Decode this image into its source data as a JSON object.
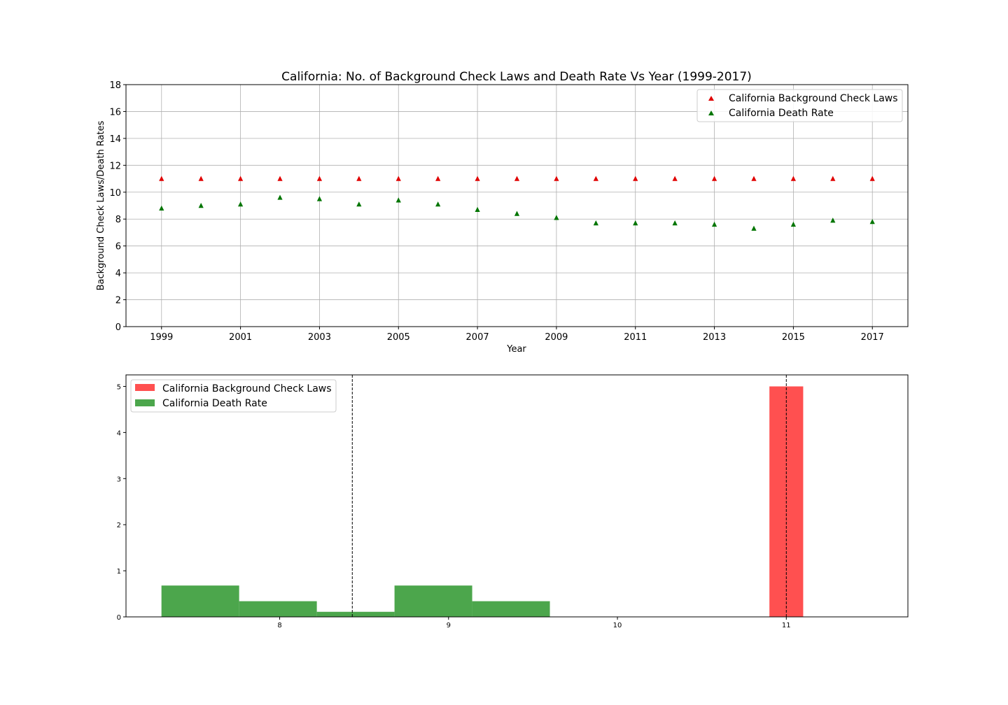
{
  "chart_data": [
    {
      "type": "scatter",
      "title": "California: No. of Background Check Laws and Death Rate Vs Year (1999-2017)",
      "xlabel": "Year",
      "ylabel": "Background Check Laws/Death Rates",
      "xlim": [
        1998.1,
        2017.9
      ],
      "ylim": [
        0,
        18
      ],
      "xticks": [
        "1999",
        "2001",
        "2003",
        "2005",
        "2007",
        "2009",
        "2011",
        "2013",
        "2015",
        "2017"
      ],
      "yticks": [
        "0",
        "2",
        "4",
        "6",
        "8",
        "10",
        "12",
        "14",
        "16",
        "18"
      ],
      "grid": true,
      "legend_position": "upper right",
      "x": [
        1999,
        2000,
        2001,
        2002,
        2003,
        2004,
        2005,
        2006,
        2007,
        2008,
        2009,
        2010,
        2011,
        2012,
        2013,
        2014,
        2015,
        2016,
        2017
      ],
      "series": [
        {
          "name": "California Background Check Laws",
          "color": "#e00000",
          "marker": "triangle",
          "values": [
            11,
            11,
            11,
            11,
            11,
            11,
            11,
            11,
            11,
            11,
            11,
            11,
            11,
            11,
            11,
            11,
            11,
            11,
            11
          ]
        },
        {
          "name": "California Death Rate",
          "color": "#007500",
          "marker": "triangle",
          "values": [
            8.8,
            9.0,
            9.1,
            9.6,
            9.5,
            9.1,
            9.4,
            9.1,
            8.7,
            8.4,
            8.1,
            7.7,
            7.7,
            7.7,
            7.6,
            7.3,
            7.6,
            7.9,
            7.8
          ]
        }
      ]
    },
    {
      "type": "histogram",
      "xlim": [
        7.09,
        11.72
      ],
      "ylim": [
        0,
        5.25
      ],
      "xticks": [
        "8",
        "9",
        "10",
        "11"
      ],
      "yticks": [
        "0",
        "1",
        "2",
        "3",
        "4",
        "5"
      ],
      "grid": false,
      "legend_position": "upper left",
      "series": [
        {
          "name": "California Background Check Laws",
          "color": "#ff5050",
          "bins": [
            {
              "x0": 10.9,
              "x1": 11.1,
              "height": 5.0
            }
          ]
        },
        {
          "name": "California Death Rate",
          "color": "#4ca64c",
          "bins": [
            {
              "x0": 7.3,
              "x1": 7.76,
              "height": 0.68
            },
            {
              "x0": 7.76,
              "x1": 8.22,
              "height": 0.34
            },
            {
              "x0": 8.22,
              "x1": 8.68,
              "height": 0.11
            },
            {
              "x0": 8.68,
              "x1": 9.14,
              "height": 0.68
            },
            {
              "x0": 9.14,
              "x1": 9.6,
              "height": 0.34
            }
          ]
        }
      ],
      "vlines": [
        {
          "x": 8.43,
          "style": "dashed",
          "color": "#000000"
        },
        {
          "x": 11.0,
          "style": "dashed",
          "color": "#000000"
        }
      ]
    }
  ]
}
